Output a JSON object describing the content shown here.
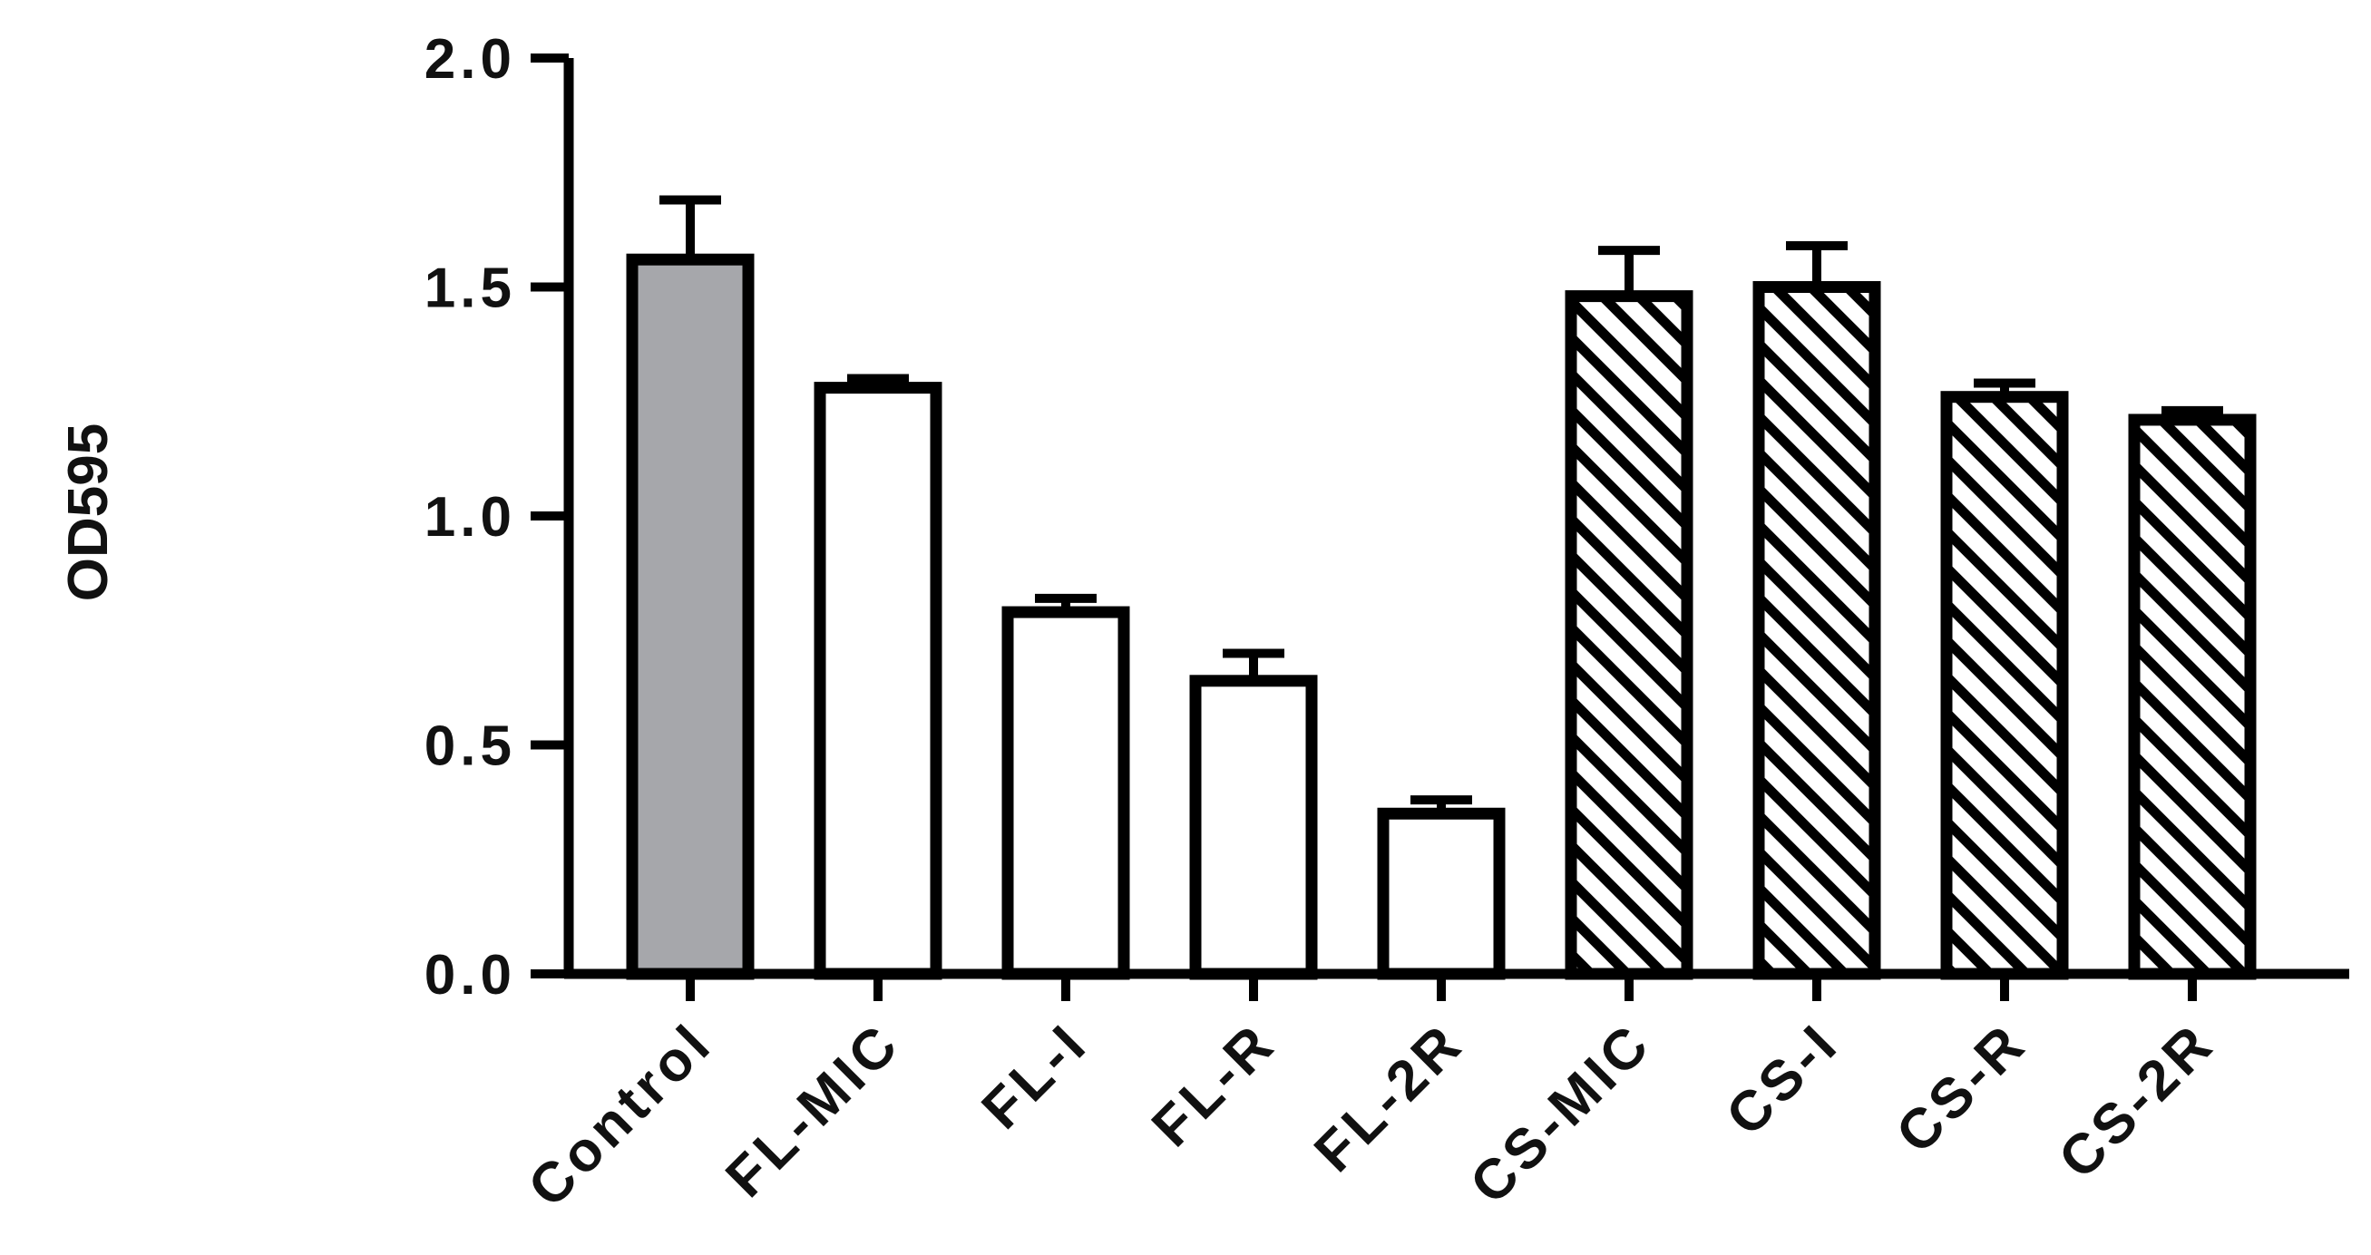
{
  "chart_data": {
    "type": "bar",
    "title": "",
    "xlabel": "",
    "ylabel": "OD595",
    "ylim": [
      0,
      2.0
    ],
    "yticks": [
      "0.0",
      "0.5",
      "1.0",
      "1.5",
      "2.0"
    ],
    "yticks_values": [
      0,
      0.5,
      1.0,
      1.5,
      2.0
    ],
    "grid": false,
    "legend": "none",
    "categories": [
      "Control",
      "FL-MIC",
      "FL-I",
      "FL-R",
      "FL-2R",
      "CS-MIC",
      "CS-I",
      "CS-R",
      "CS-2R"
    ],
    "values": [
      1.56,
      1.28,
      0.79,
      0.64,
      0.35,
      1.48,
      1.5,
      1.26,
      1.21
    ],
    "errors": [
      0.13,
      0.02,
      0.03,
      0.06,
      0.03,
      0.1,
      0.09,
      0.03,
      0.02
    ],
    "fills": [
      "gray",
      "white",
      "white",
      "white",
      "white",
      "hatched",
      "hatched",
      "hatched",
      "hatched"
    ],
    "colors": {
      "gray_fill": "#a6a7ab",
      "outline": "#000000",
      "white_fill": "#ffffff"
    }
  }
}
